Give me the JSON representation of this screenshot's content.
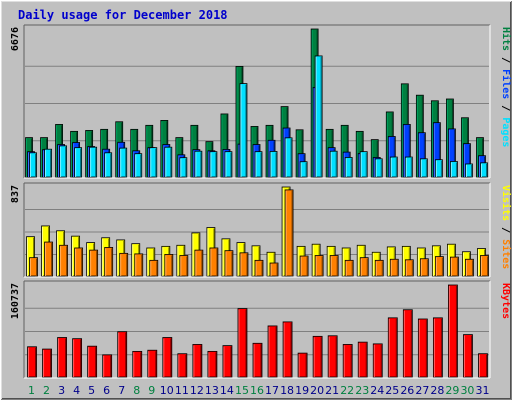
{
  "chart_data": {
    "type": "bar",
    "title": "Daily usage for December 2018",
    "categories": [
      "1",
      "2",
      "3",
      "4",
      "5",
      "6",
      "7",
      "8",
      "9",
      "10",
      "11",
      "12",
      "13",
      "14",
      "15",
      "16",
      "17",
      "18",
      "19",
      "20",
      "21",
      "22",
      "23",
      "24",
      "25",
      "26",
      "27",
      "28",
      "29",
      "30",
      "31"
    ],
    "weekend_days": [
      "1",
      "2",
      "8",
      "9",
      "15",
      "16",
      "22",
      "23",
      "29",
      "30"
    ],
    "colors": {
      "hits": "#008040",
      "files": "#0040ff",
      "pages": "#00e0ff",
      "visits": "#ffff00",
      "sites": "#ff8000",
      "kbytes": "#ff0000",
      "weekday_label": "#00008b",
      "weekend_label": "#008040",
      "title": "#0000cc"
    },
    "panels": [
      {
        "name": "hits-files-pages",
        "axis_label": "6676",
        "ylim": [
          0,
          6676
        ],
        "legend_side": "right",
        "legend": [
          {
            "text": "Pages",
            "color": "#00e0ff"
          },
          {
            "text": "Files",
            "color": "#0040ff"
          },
          {
            "text": "Hits",
            "color": "#008040"
          }
        ],
        "series": [
          {
            "name": "Hits",
            "color": "#008040",
            "values": [
              1810,
              1810,
              2400,
              2090,
              2130,
              2180,
              2520,
              2180,
              2360,
              2580,
              1810,
              2360,
              1630,
              2870,
              5000,
              2310,
              2360,
              3200,
              2160,
              6676,
              2180,
              2360,
              2090,
              1720,
              2960,
              4220,
              3710,
              3460,
              3540,
              2700,
              1810
            ]
          },
          {
            "name": "Files",
            "color": "#0040ff",
            "values": [
              1180,
              1270,
              1500,
              1590,
              1410,
              1290,
              1600,
              1220,
              1360,
              1500,
              1040,
              1270,
              1220,
              1280,
              1520,
              1500,
              1690,
              2240,
              1090,
              4060,
              1360,
              1160,
              1100,
              920,
              1860,
              2400,
              2030,
              2480,
              2200,
              1540,
              1000
            ]
          },
          {
            "name": "Pages",
            "color": "#00e0ff",
            "values": [
              1130,
              1290,
              1440,
              1360,
              1380,
              1130,
              1340,
              1090,
              1360,
              1380,
              910,
              1200,
              1180,
              1180,
              4230,
              1180,
              1190,
              1800,
              730,
              5470,
              1200,
              920,
              1180,
              860,
              940,
              940,
              860,
              820,
              740,
              630,
              680
            ]
          }
        ]
      },
      {
        "name": "visits-sites",
        "axis_label": "837",
        "ylim": [
          0,
          837
        ],
        "legend_side": "right",
        "legend": [
          {
            "text": "Sites",
            "color": "#ff8000"
          },
          {
            "text": "Visits",
            "color": "#ffff00"
          }
        ],
        "series": [
          {
            "name": "Visits",
            "color": "#ffff00",
            "values": [
              375,
              475,
              430,
              380,
              320,
              365,
              345,
              310,
              270,
              285,
              295,
              410,
              460,
              355,
              320,
              290,
              230,
              837,
              285,
              305,
              285,
              270,
              295,
              230,
              280,
              285,
              270,
              290,
              305,
              235,
              265
            ]
          },
          {
            "name": "Sites",
            "color": "#ff8000",
            "values": [
              180,
              325,
              295,
              270,
              250,
              275,
              220,
              215,
              155,
              210,
              200,
              250,
              270,
              245,
              225,
              155,
              130,
              810,
              195,
              200,
              200,
              155,
              180,
              155,
              165,
              160,
              170,
              190,
              185,
              165,
              200
            ]
          }
        ]
      },
      {
        "name": "kbytes",
        "axis_label": "160737",
        "ylim": [
          0,
          160737
        ],
        "legend_side": "right",
        "legend": [
          {
            "text": "KBytes",
            "color": "#ff0000"
          }
        ],
        "series": [
          {
            "name": "KBytes",
            "color": "#ff0000",
            "values": [
              54000,
              50000,
              70000,
              68000,
              55000,
              40000,
              80000,
              46000,
              48000,
              70000,
              42000,
              58000,
              46000,
              56000,
              120000,
              60000,
              90000,
              97000,
              43000,
              72000,
              73000,
              58000,
              62000,
              59000,
              104000,
              118000,
              102000,
              104000,
              160737,
              75000,
              42000
            ]
          }
        ]
      }
    ]
  }
}
